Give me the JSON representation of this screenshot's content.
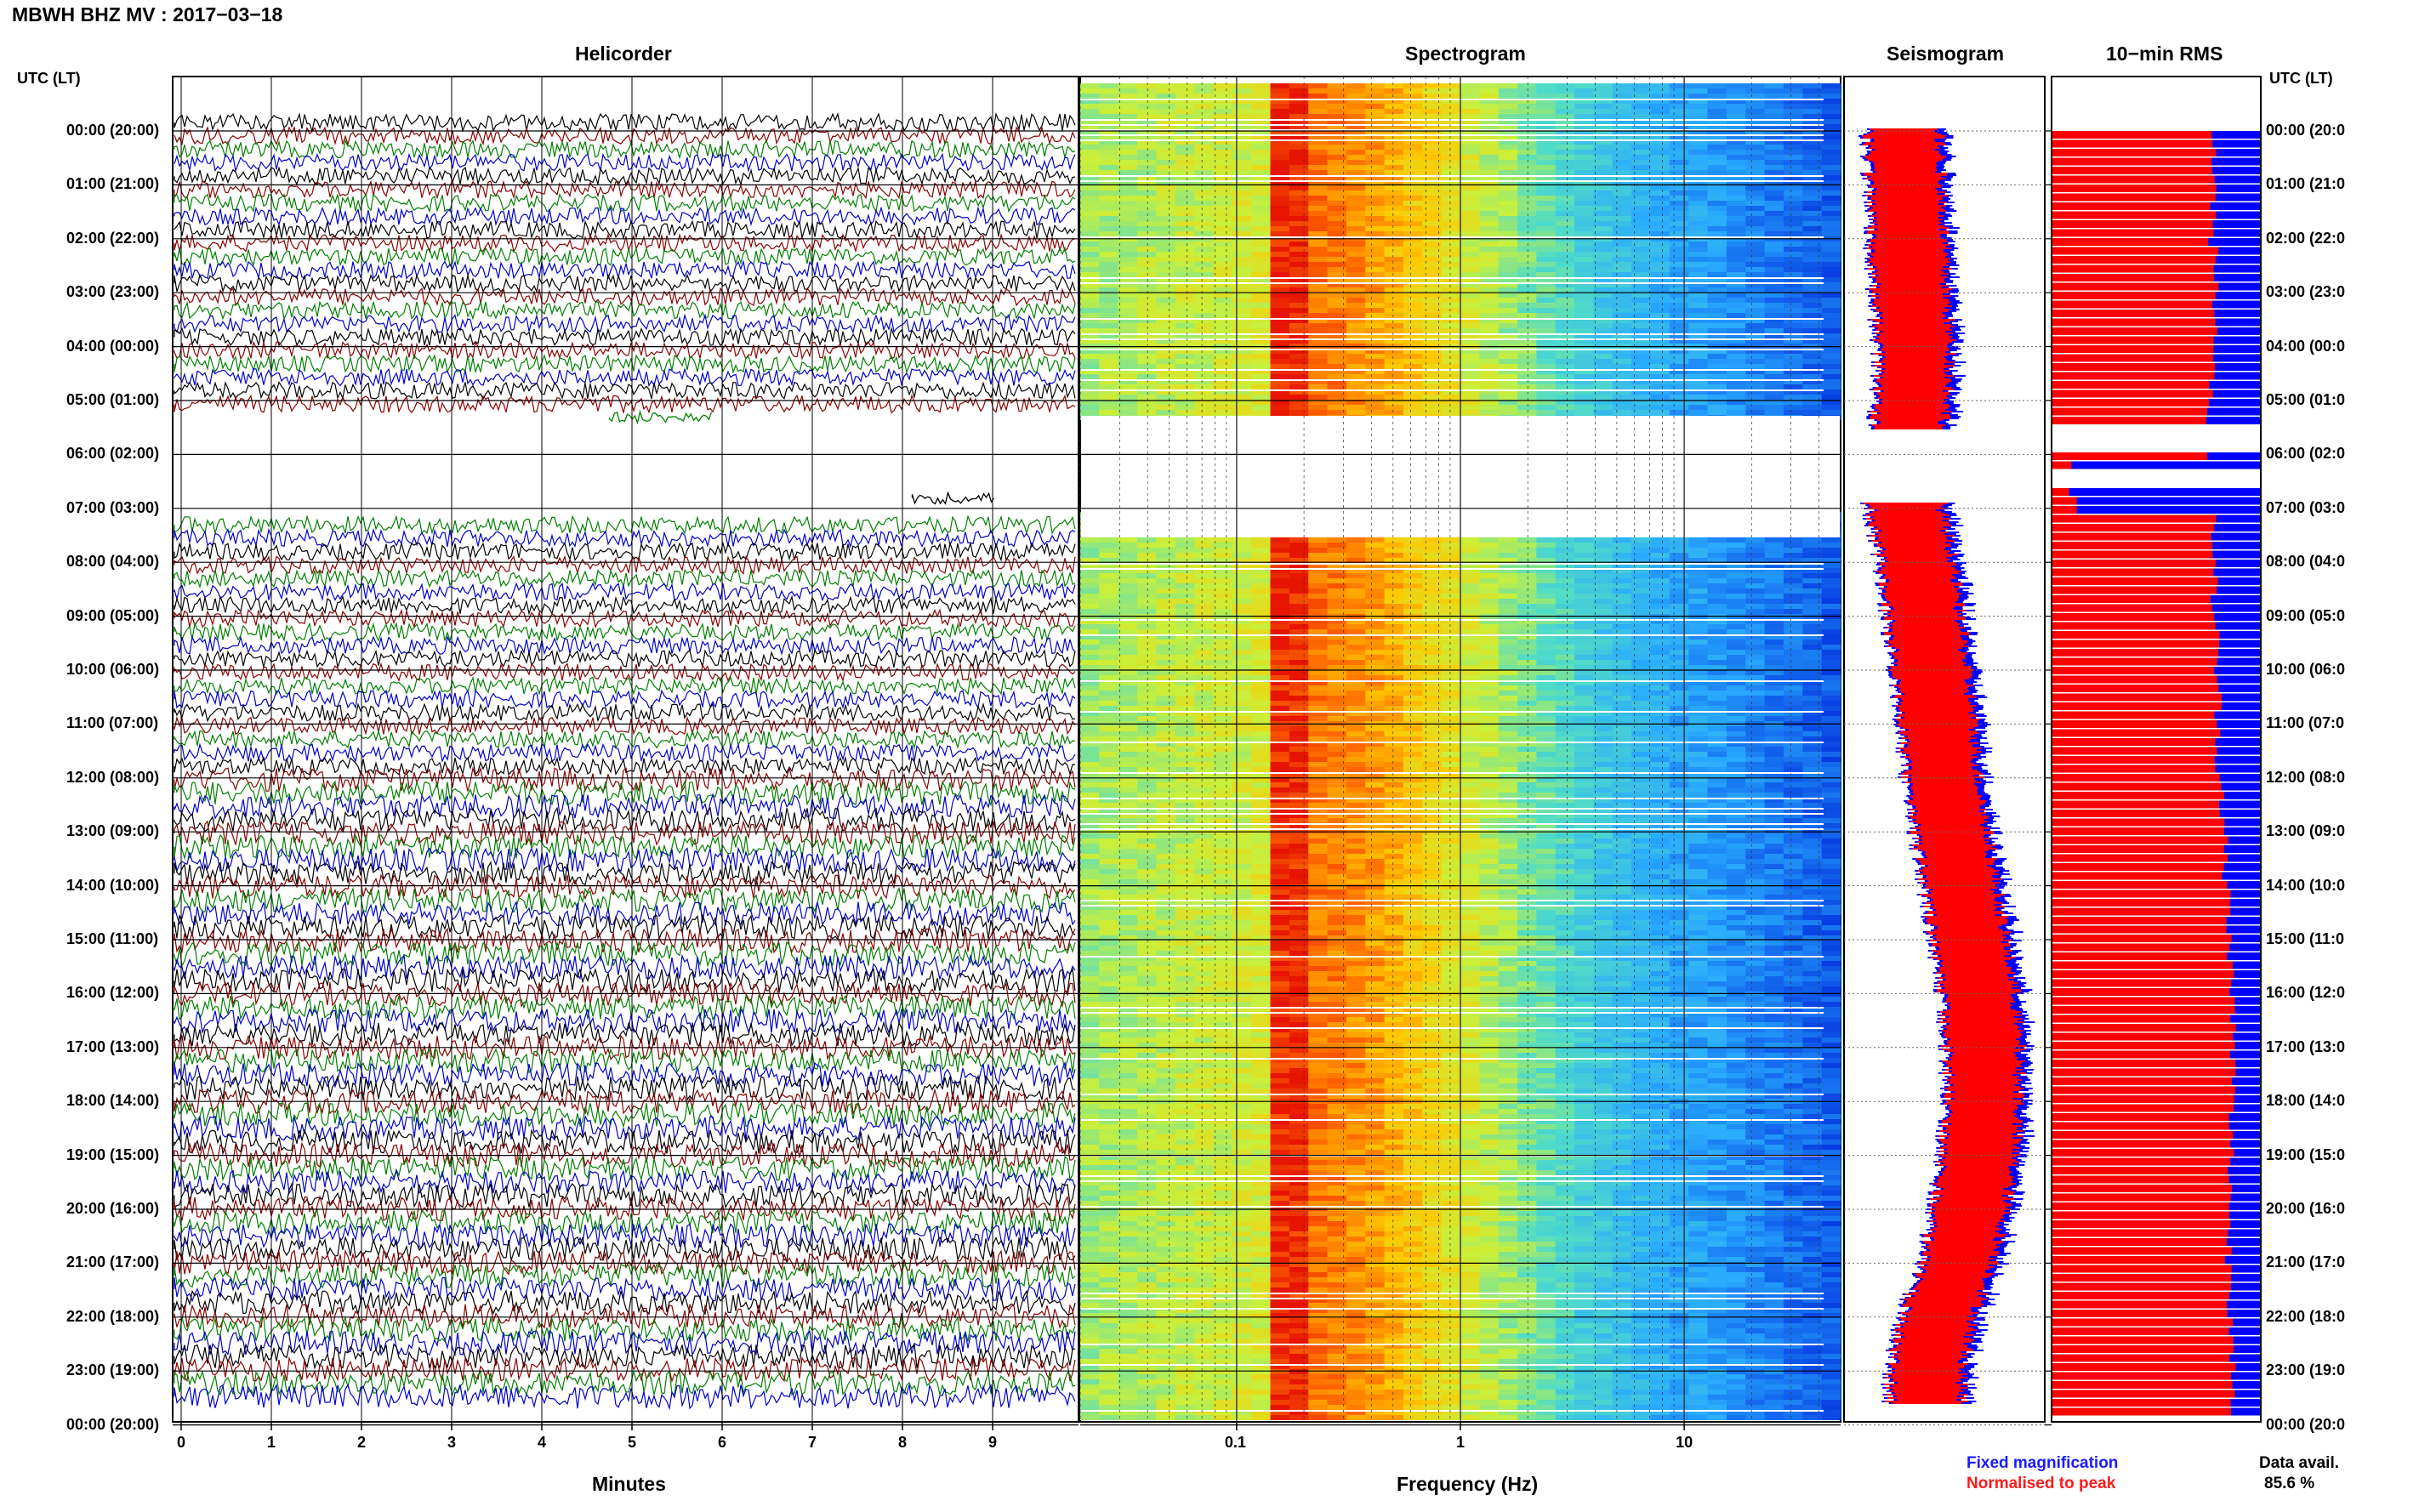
{
  "header": {
    "title": "MBWH BHZ MV : 2017−03−18"
  },
  "panels": {
    "helicorder": "Helicorder",
    "spectrogram": "Spectrogram",
    "seismogram": "Seismogram",
    "rms": "10−min RMS"
  },
  "y_axis_label": "UTC (LT)",
  "time_labels": [
    "00:00 (20:00)",
    "01:00 (21:00)",
    "02:00 (22:00)",
    "03:00 (23:00)",
    "04:00 (00:00)",
    "05:00 (01:00)",
    "06:00 (02:00)",
    "07:00 (03:00)",
    "08:00 (04:00)",
    "09:00 (05:00)",
    "10:00 (06:00)",
    "11:00 (07:00)",
    "12:00 (08:00)",
    "13:00 (09:00)",
    "14:00 (10:00)",
    "15:00 (11:00)",
    "16:00 (12:00)",
    "17:00 (13:00)",
    "18:00 (14:00)",
    "19:00 (15:00)",
    "20:00 (16:00)",
    "21:00 (17:00)",
    "22:00 (18:00)",
    "23:00 (19:00)",
    "00:00 (20:00)"
  ],
  "right_time_labels": [
    "00:00 (20:0",
    "01:00 (21:0",
    "02:00 (22:0",
    "03:00 (23:0",
    "04:00 (00:0",
    "05:00 (01:0",
    "06:00 (02:0",
    "07:00 (03:0",
    "08:00 (04:0",
    "09:00 (05:0",
    "10:00 (06:0",
    "11:00 (07:0",
    "12:00 (08:0",
    "13:00 (09:0",
    "14:00 (10:0",
    "15:00 (11:0",
    "16:00 (12:0",
    "17:00 (13:0",
    "18:00 (14:0",
    "19:00 (15:0",
    "20:00 (16:0",
    "21:00 (17:0",
    "22:00 (18:0",
    "23:00 (19:0",
    "00:00 (20:0"
  ],
  "right_axis_label": "UTC (LT)",
  "helicorder": {
    "xlabel": "Minutes",
    "ticks": [
      "0",
      "1",
      "2",
      "3",
      "4",
      "5",
      "6",
      "7",
      "8",
      "9"
    ],
    "trace_colors": [
      "#000000",
      "#8b0000",
      "#008000",
      "#0000cd"
    ]
  },
  "spectrogram": {
    "xlabel": "Frequency (Hz)",
    "ticks": [
      "0.1",
      "1",
      "10"
    ],
    "xlim": [
      0.02,
      50
    ],
    "scale": "log"
  },
  "legend": {
    "fixed": "Fixed magnification",
    "normalised": "Normalised to peak"
  },
  "data_availability": {
    "label": "Data avail.",
    "value": "85.6 %"
  },
  "chart_data": {
    "type": "heatmap",
    "hours": [
      0,
      1,
      2,
      3,
      4,
      5,
      6,
      7,
      8,
      9,
      10,
      11,
      12,
      13,
      14,
      15,
      16,
      17,
      18,
      19,
      20,
      21,
      22,
      23
    ],
    "rms_relative": [
      0.78,
      0.77,
      0.79,
      0.79,
      0.77,
      0.75,
      0.1,
      0.78,
      0.78,
      0.79,
      0.8,
      0.8,
      0.82,
      0.83,
      0.85,
      0.86,
      0.87,
      0.87,
      0.86,
      0.86,
      0.85,
      0.86,
      0.87,
      0.86
    ],
    "seismogram_envelope": [
      0.3,
      0.32,
      0.34,
      0.36,
      0.4,
      0.38,
      0.3,
      0.32,
      0.42,
      0.48,
      0.54,
      0.6,
      0.64,
      0.72,
      0.8,
      0.88,
      0.96,
      1.0,
      1.0,
      0.96,
      0.88,
      0.78,
      0.6,
      0.5
    ],
    "gap_hours": [
      5.3,
      7.0
    ],
    "colors": {
      "fixed": "#0000ff",
      "normalised": "#ff0000"
    }
  }
}
